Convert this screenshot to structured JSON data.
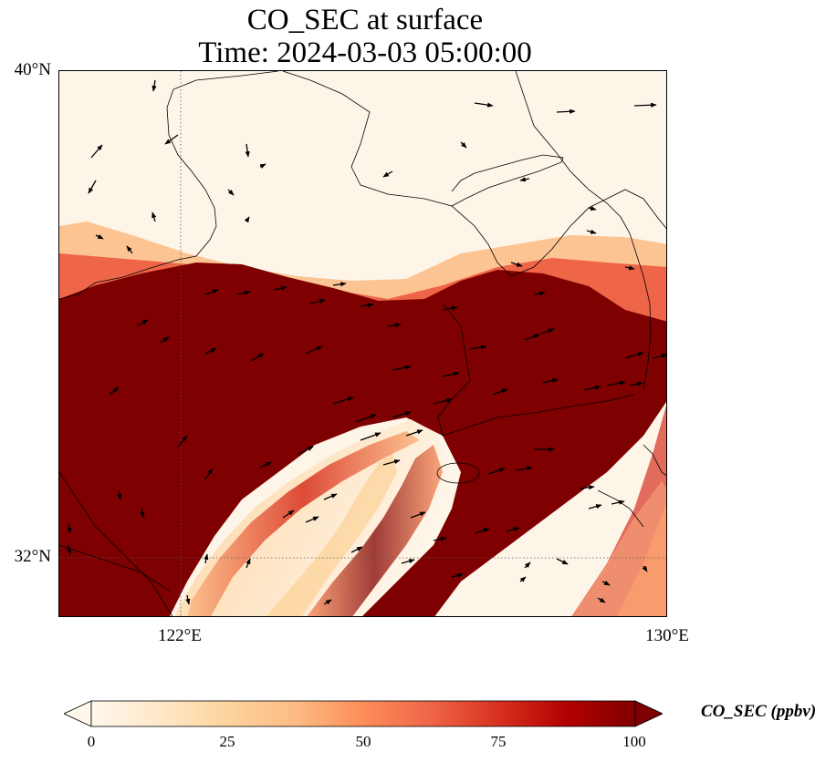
{
  "title": {
    "line1": "CO_SEC at surface",
    "line2": "Time: 2024-03-03 05:00:00"
  },
  "map": {
    "lon_range": [
      120.0,
      130.0
    ],
    "lat_range": [
      31.0,
      40.0
    ],
    "lat_labels": [
      {
        "value": 40,
        "text": "40°N"
      },
      {
        "value": 32,
        "text": "32°N"
      }
    ],
    "lon_labels": [
      {
        "value": 122,
        "text": "122°E"
      },
      {
        "value": 130,
        "text": "130°E"
      }
    ],
    "gridlines": {
      "lon": [
        122
      ],
      "lat": [
        32
      ],
      "style": "dotted"
    },
    "plume_color_high": "#7f0000",
    "background_color": "#fef5e9",
    "wind_vectors": "black arrows"
  },
  "colorbar": {
    "label": "CO_SEC (ppbv)",
    "min": 0,
    "max": 100,
    "ticks": [
      "0",
      "25",
      "50",
      "75",
      "100"
    ],
    "extend": "both",
    "colormap": "OrRd",
    "stops": [
      "#fff7ec",
      "#fee8c8",
      "#fdd49e",
      "#fdbb84",
      "#fc8d59",
      "#ef6548",
      "#d7301f",
      "#b30000",
      "#7f0000"
    ]
  }
}
